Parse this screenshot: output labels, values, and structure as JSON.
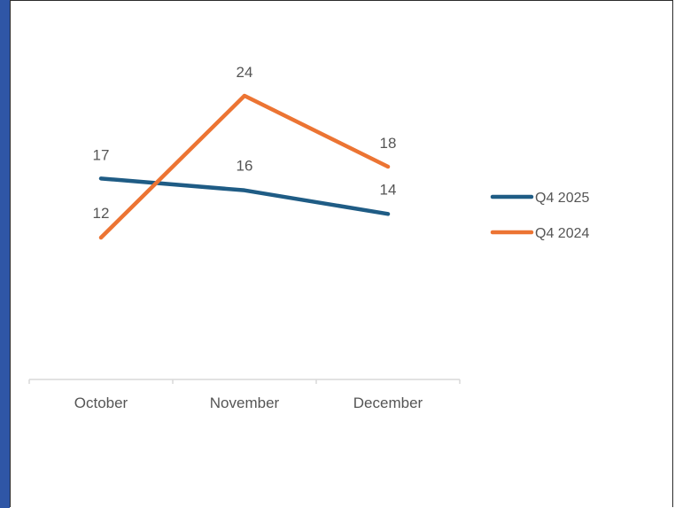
{
  "chart_data": {
    "type": "line",
    "title": "",
    "xlabel": "",
    "ylabel": "",
    "categories": [
      "October",
      "November",
      "December"
    ],
    "ylim": [
      0,
      30
    ],
    "grid": false,
    "legend_position": "right",
    "data_labels": true,
    "series": [
      {
        "name": "Q4 2025",
        "values": [
          17,
          16,
          14
        ],
        "color": "#1f5c85"
      },
      {
        "name": "Q4 2024",
        "values": [
          12,
          24,
          18
        ],
        "color": "#ec7433"
      }
    ]
  }
}
